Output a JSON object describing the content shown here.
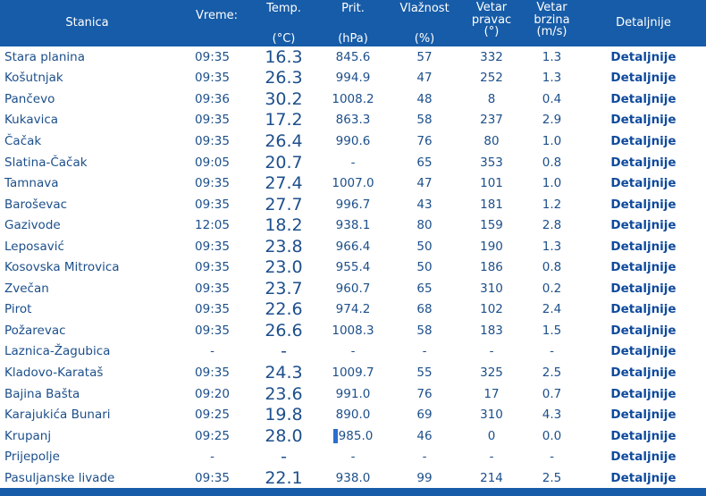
{
  "header": {
    "station": "Stanica",
    "time": "Vreme:",
    "temp_top": "Temp.",
    "temp_unit": "(°C)",
    "pres_top": "Prit.",
    "pres_unit": "(hPa)",
    "hum_top": "Vlažnost",
    "hum_unit": "(%)",
    "dir_1": "Vetar",
    "dir_2": "pravac",
    "dir_3": "(°)",
    "spd_1": "Vetar",
    "spd_2": "brzina",
    "spd_3": "(m/s)",
    "details": "Detaljnije"
  },
  "rows": [
    {
      "station": "Stara planina",
      "time": "09:35",
      "temp": "16.3",
      "pres": "845.6",
      "hum": "57",
      "dir": "332",
      "spd": "1.3",
      "det": "Detaljnije"
    },
    {
      "station": "Košutnjak",
      "time": "09:35",
      "temp": "26.3",
      "pres": "994.9",
      "hum": "47",
      "dir": "252",
      "spd": "1.3",
      "det": "Detaljnije"
    },
    {
      "station": "Pančevo",
      "time": "09:36",
      "temp": "30.2",
      "pres": "1008.2",
      "hum": "48",
      "dir": "8",
      "spd": "0.4",
      "det": "Detaljnije"
    },
    {
      "station": "Kukavica",
      "time": "09:35",
      "temp": "17.2",
      "pres": "863.3",
      "hum": "58",
      "dir": "237",
      "spd": "2.9",
      "det": "Detaljnije"
    },
    {
      "station": "Čačak",
      "time": "09:35",
      "temp": "26.4",
      "pres": "990.6",
      "hum": "76",
      "dir": "80",
      "spd": "1.0",
      "det": "Detaljnije"
    },
    {
      "station": "Slatina-Čačak",
      "time": "09:05",
      "temp": "20.7",
      "pres": "-",
      "hum": "65",
      "dir": "353",
      "spd": "0.8",
      "det": "Detaljnije"
    },
    {
      "station": "Tamnava",
      "time": "09:35",
      "temp": "27.4",
      "pres": "1007.0",
      "hum": "47",
      "dir": "101",
      "spd": "1.0",
      "det": "Detaljnije"
    },
    {
      "station": "Baroševac",
      "time": "09:35",
      "temp": "27.7",
      "pres": "996.7",
      "hum": "43",
      "dir": "181",
      "spd": "1.2",
      "det": "Detaljnije"
    },
    {
      "station": "Gazivode",
      "time": "12:05",
      "temp": "18.2",
      "pres": "938.1",
      "hum": "80",
      "dir": "159",
      "spd": "2.8",
      "det": "Detaljnije"
    },
    {
      "station": "Leposavić",
      "time": "09:35",
      "temp": "23.8",
      "pres": "966.4",
      "hum": "50",
      "dir": "190",
      "spd": "1.3",
      "det": "Detaljnije"
    },
    {
      "station": "Kosovska Mitrovica",
      "time": "09:35",
      "temp": "23.0",
      "pres": "955.4",
      "hum": "50",
      "dir": "186",
      "spd": "0.8",
      "det": "Detaljnije"
    },
    {
      "station": "Zvečan",
      "time": "09:35",
      "temp": "23.7",
      "pres": "960.7",
      "hum": "65",
      "dir": "310",
      "spd": "0.2",
      "det": "Detaljnije"
    },
    {
      "station": "Pirot",
      "time": "09:35",
      "temp": "22.6",
      "pres": "974.2",
      "hum": "68",
      "dir": "102",
      "spd": "2.4",
      "det": "Detaljnije"
    },
    {
      "station": "Požarevac",
      "time": "09:35",
      "temp": "26.6",
      "pres": "1008.3",
      "hum": "58",
      "dir": "183",
      "spd": "1.5",
      "det": "Detaljnije"
    },
    {
      "station": "Laznica-Žagubica",
      "time": "-",
      "temp": "-",
      "pres": "-",
      "hum": "-",
      "dir": "-",
      "spd": "-",
      "det": "Detaljnije"
    },
    {
      "station": "Kladovo-Karataš",
      "time": "09:35",
      "temp": "24.3",
      "pres": "1009.7",
      "hum": "55",
      "dir": "325",
      "spd": "2.5",
      "det": "Detaljnije"
    },
    {
      "station": "Bajina Bašta",
      "time": "09:20",
      "temp": "23.6",
      "pres": "991.0",
      "hum": "76",
      "dir": "17",
      "spd": "0.7",
      "det": "Detaljnije"
    },
    {
      "station": "Karajukića Bunari",
      "time": "09:25",
      "temp": "19.8",
      "pres": "890.0",
      "hum": "69",
      "dir": "310",
      "spd": "4.3",
      "det": "Detaljnije"
    },
    {
      "station": "Krupanj",
      "time": "09:25",
      "temp": "28.0",
      "pres": "985.0",
      "hum": "46",
      "dir": "0",
      "spd": "0.0",
      "det": "Detaljnije"
    },
    {
      "station": "Prijepolje",
      "time": "-",
      "temp": "-",
      "pres": "-",
      "hum": "-",
      "dir": "-",
      "spd": "-",
      "det": "Detaljnije"
    },
    {
      "station": "Pasuljanske livade",
      "time": "09:35",
      "temp": "22.1",
      "pres": "938.0",
      "hum": "99",
      "dir": "214",
      "spd": "2.5",
      "det": "Detaljnije"
    }
  ]
}
